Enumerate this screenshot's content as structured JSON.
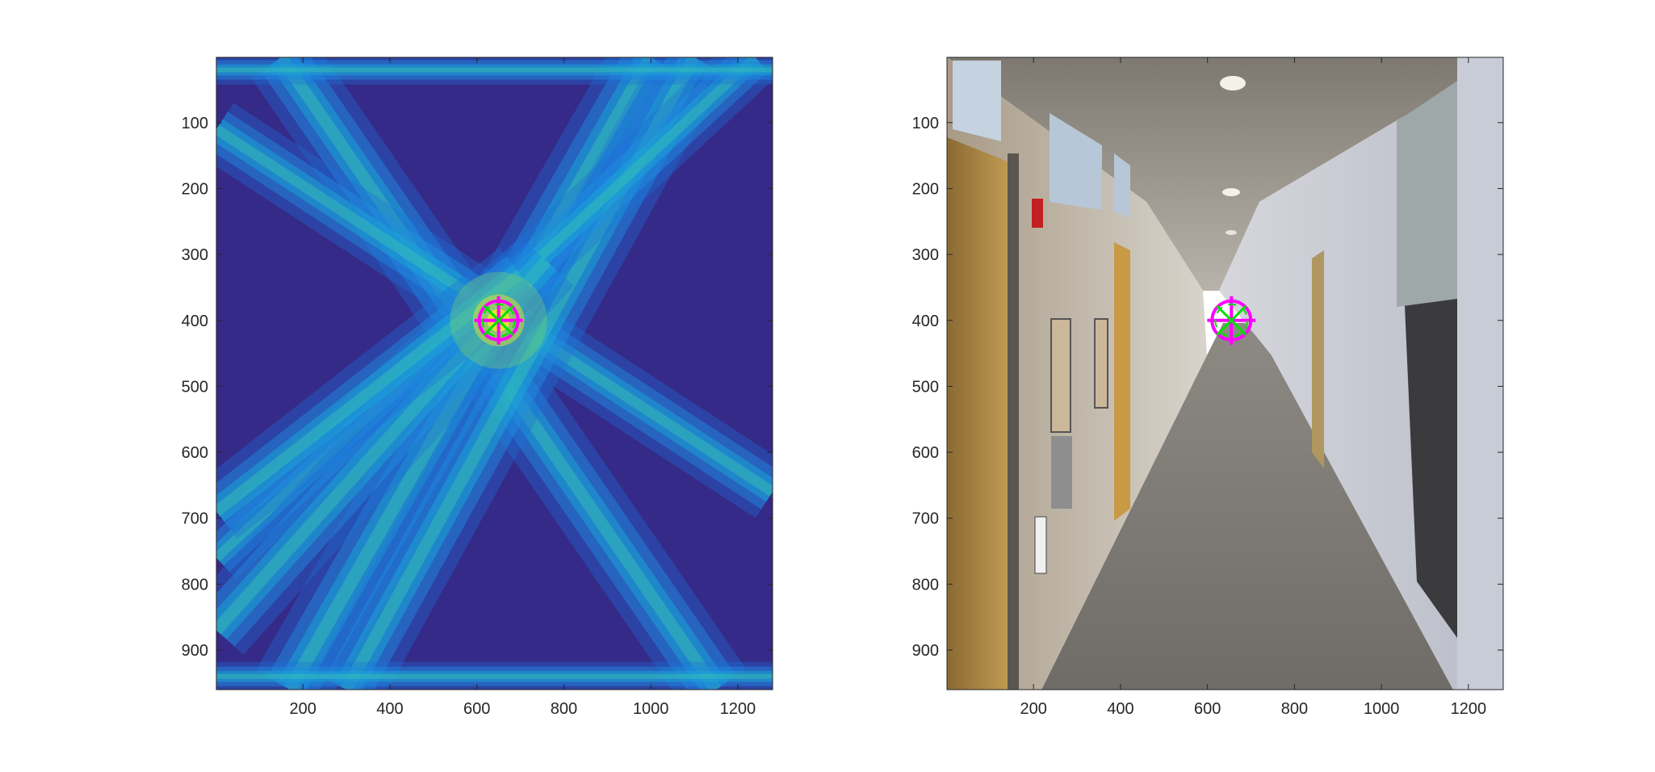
{
  "chart_data": [
    {
      "type": "heatmap",
      "title": "",
      "xlabel": "",
      "ylabel": "",
      "xlim": [
        1,
        1280
      ],
      "ylim": [
        1,
        960
      ],
      "y_reversed": true,
      "xticks": [
        200,
        400,
        600,
        800,
        1000,
        1200
      ],
      "yticks": [
        100,
        200,
        300,
        400,
        500,
        600,
        700,
        800,
        900
      ],
      "colormap": "parula",
      "background_color": "#352a87",
      "beams": [
        {
          "from": [
            150,
            1
          ],
          "to": [
            1150,
            960
          ],
          "width": 70
        },
        {
          "from": [
            1,
            110
          ],
          "to": [
            1280,
            660
          ],
          "width": 60
        },
        {
          "from": [
            1000,
            1
          ],
          "to": [
            170,
            960
          ],
          "width": 75
        },
        {
          "from": [
            1100,
            1
          ],
          "to": [
            300,
            960
          ],
          "width": 70
        },
        {
          "from": [
            1240,
            1
          ],
          "to": [
            1,
            760
          ],
          "width": 55
        },
        {
          "from": [
            1,
            870
          ],
          "to": [
            760,
            310
          ],
          "width": 70
        },
        {
          "from": [
            1,
            690
          ],
          "to": [
            700,
            330
          ],
          "width": 65
        },
        {
          "from": [
            1,
            20
          ],
          "to": [
            1280,
            20
          ],
          "width": 28
        },
        {
          "from": [
            1,
            940
          ],
          "to": [
            1280,
            940
          ],
          "width": 28
        }
      ],
      "marker": {
        "x": 650,
        "y": 400,
        "color_circle": "#ff00ff",
        "color_cross": "#00e000"
      }
    },
    {
      "type": "image",
      "title": "",
      "xlabel": "",
      "ylabel": "",
      "xlim": [
        1,
        1280
      ],
      "ylim": [
        1,
        960
      ],
      "y_reversed": true,
      "xticks": [
        200,
        400,
        600,
        800,
        1000,
        1200
      ],
      "yticks": [
        100,
        200,
        300,
        400,
        500,
        600,
        700,
        800,
        900
      ],
      "marker": {
        "x": 655,
        "y": 400,
        "color_circle": "#ff00ff",
        "color_cross": "#00e000"
      }
    }
  ]
}
